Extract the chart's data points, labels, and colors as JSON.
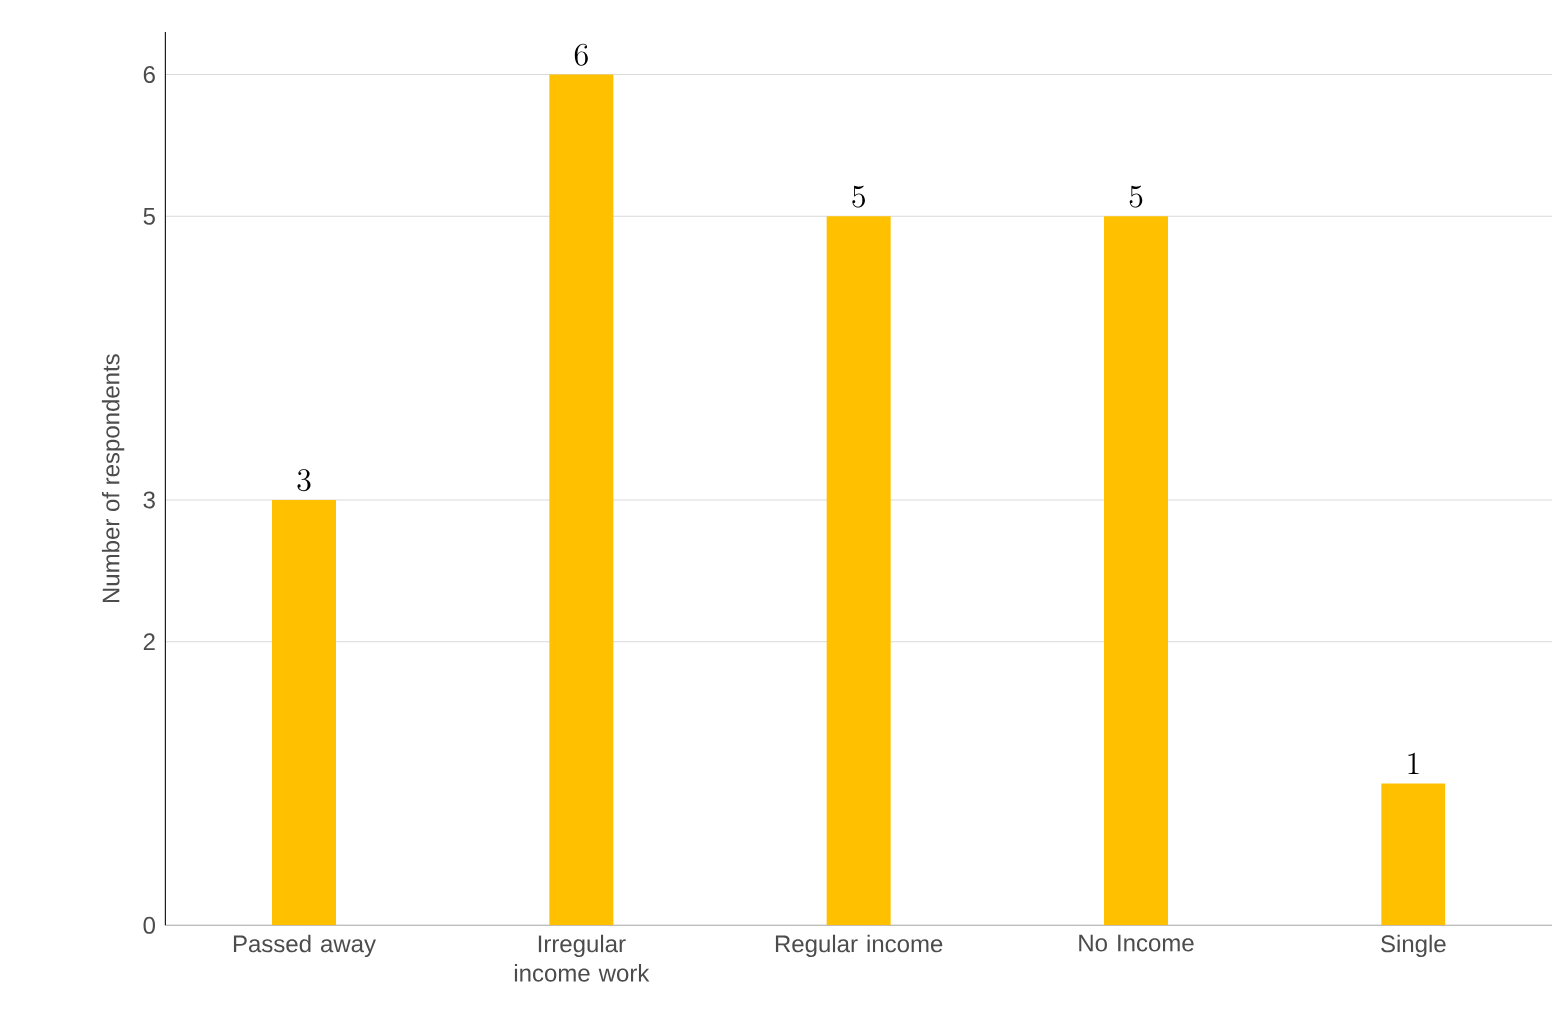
{
  "chart_data": {
    "type": "bar",
    "ylabel": "Number of respondents",
    "categories": [
      "Passed away",
      "Irregular income work",
      "Regular income",
      "No Income",
      "Single"
    ],
    "values": [
      3,
      6,
      5,
      5,
      1
    ],
    "color": "#ffc000",
    "data_labels": true,
    "ylim": [
      0,
      6.3
    ],
    "yticks": [
      0,
      2,
      3,
      5,
      6
    ],
    "grid": "y"
  }
}
